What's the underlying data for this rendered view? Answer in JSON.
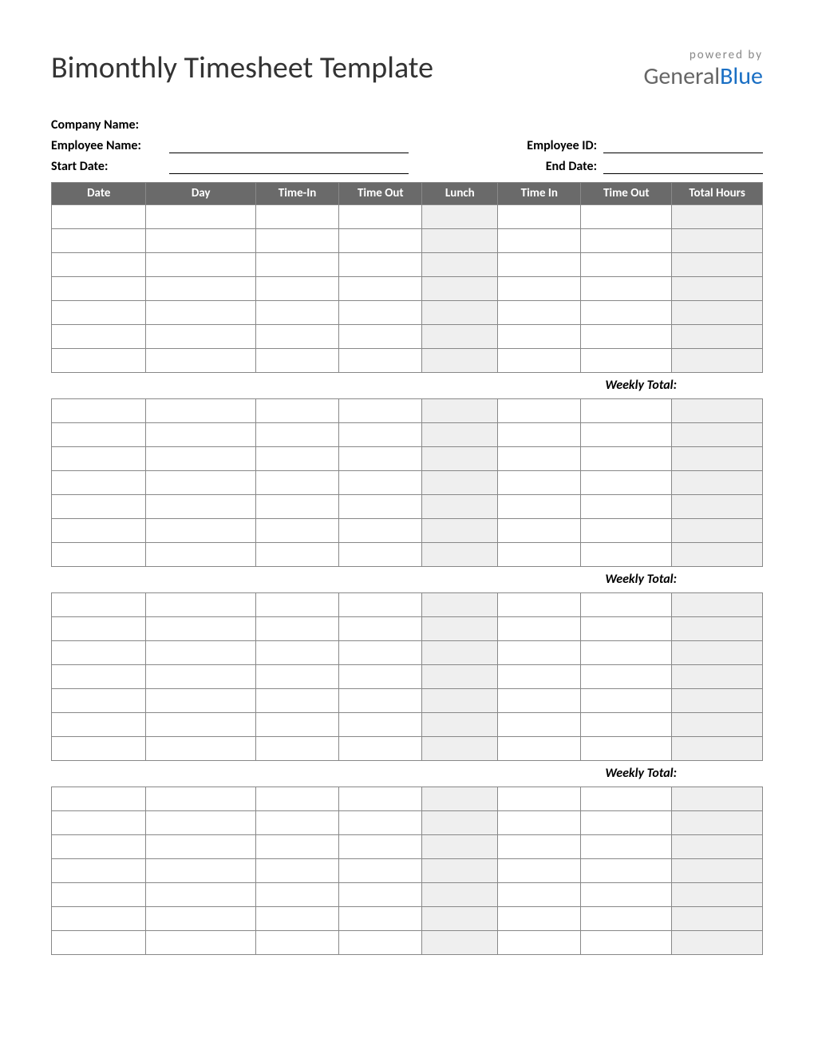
{
  "title": "Bimonthly Timesheet Template",
  "brand": {
    "powered_by": "powered by",
    "general": "General",
    "blue": "Blue"
  },
  "info": {
    "company_label": "Company Name:",
    "employee_label": "Employee Name:",
    "employee_id_label": "Employee ID:",
    "start_date_label": "Start Date:",
    "end_date_label": "End Date:"
  },
  "table": {
    "columns": [
      "Date",
      "Day",
      "Time-In",
      "Time Out",
      "Lunch",
      "Time In",
      "Time Out",
      "Total Hours"
    ],
    "shaded_columns": [
      4,
      7
    ],
    "header_bg": "#6a6a6a",
    "header_fg": "#ffffff",
    "border_color": "#888888",
    "shaded_bg": "#efefef",
    "cell_bg": "#ffffff",
    "rows_per_week": 7,
    "num_weeks_with_total": 3,
    "final_week_rows": 7
  },
  "weekly_total_label": "Weekly Total:"
}
